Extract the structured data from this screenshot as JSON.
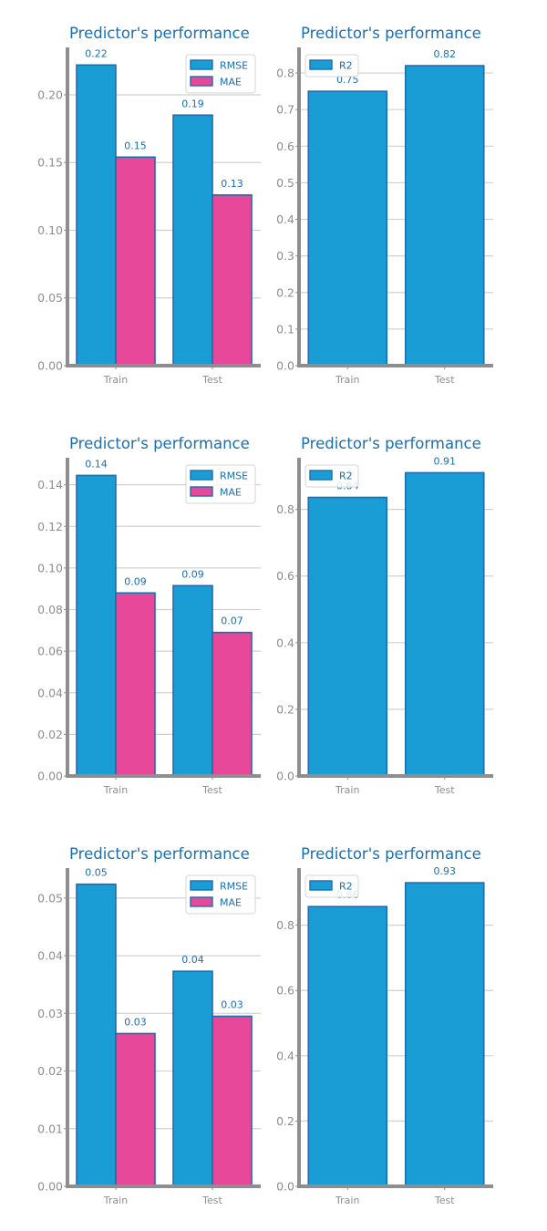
{
  "colors": {
    "rmse": "#199dd4",
    "mae": "#e8489a",
    "r2": "#199dd4",
    "edge": "#1a6fb0",
    "text": "#1a6fb0",
    "axis": "#8e8e8e",
    "grid": "#d0d0d0"
  },
  "chart_data": [
    {
      "type": "bar",
      "title": "Predictor's performance",
      "categories": [
        "Train",
        "Test"
      ],
      "series": [
        {
          "name": "RMSE",
          "values": [
            0.222,
            0.185
          ],
          "labels": [
            "0.22",
            "0.19"
          ]
        },
        {
          "name": "MAE",
          "values": [
            0.154,
            0.126
          ],
          "labels": [
            "0.15",
            "0.13"
          ]
        }
      ],
      "ylim": [
        0,
        0.235
      ],
      "yticks": [
        "0.00",
        "0.05",
        "0.10",
        "0.15",
        "0.20"
      ],
      "yticks_values": [
        0,
        0.05,
        0.1,
        0.15,
        0.2
      ],
      "grid": true,
      "legend": "top-right"
    },
    {
      "type": "bar",
      "title": "Predictor's performance",
      "categories": [
        "Train",
        "Test"
      ],
      "series": [
        {
          "name": "R2",
          "values": [
            0.75,
            0.82
          ],
          "labels": [
            "0.75",
            "0.82"
          ]
        }
      ],
      "ylim": [
        0,
        0.87
      ],
      "yticks": [
        "0.0",
        "0.1",
        "0.2",
        "0.3",
        "0.4",
        "0.5",
        "0.6",
        "0.7",
        "0.8"
      ],
      "yticks_values": [
        0,
        0.1,
        0.2,
        0.3,
        0.4,
        0.5,
        0.6,
        0.7,
        0.8
      ],
      "grid": true,
      "legend": "top-left"
    },
    {
      "type": "bar",
      "title": "Predictor's performance",
      "categories": [
        "Train",
        "Test"
      ],
      "series": [
        {
          "name": "RMSE",
          "values": [
            0.1445,
            0.0915
          ],
          "labels": [
            "0.14",
            "0.09"
          ]
        },
        {
          "name": "MAE",
          "values": [
            0.088,
            0.069
          ],
          "labels": [
            "0.09",
            "0.07"
          ]
        }
      ],
      "ylim": [
        0,
        0.153
      ],
      "yticks": [
        "0.00",
        "0.02",
        "0.04",
        "0.06",
        "0.08",
        "0.10",
        "0.12",
        "0.14"
      ],
      "yticks_values": [
        0,
        0.02,
        0.04,
        0.06,
        0.08,
        0.1,
        0.12,
        0.14
      ],
      "grid": true,
      "legend": "top-right"
    },
    {
      "type": "bar",
      "title": "Predictor's performance",
      "categories": [
        "Train",
        "Test"
      ],
      "series": [
        {
          "name": "R2",
          "values": [
            0.836,
            0.91
          ],
          "labels": [
            "0.84",
            "0.91"
          ]
        }
      ],
      "ylim": [
        0,
        0.955
      ],
      "yticks": [
        "0.0",
        "0.2",
        "0.4",
        "0.6",
        "0.8"
      ],
      "yticks_values": [
        0,
        0.2,
        0.4,
        0.6,
        0.8
      ],
      "grid": true,
      "legend": "top-left"
    },
    {
      "type": "bar",
      "title": "Predictor's performance",
      "categories": [
        "Train",
        "Test"
      ],
      "series": [
        {
          "name": "RMSE",
          "values": [
            0.0524,
            0.0373
          ],
          "labels": [
            "0.05",
            "0.04"
          ]
        },
        {
          "name": "MAE",
          "values": [
            0.0265,
            0.0295
          ],
          "labels": [
            "0.03",
            "0.03"
          ]
        }
      ],
      "ylim": [
        0,
        0.0552
      ],
      "yticks": [
        "0.00",
        "0.01",
        "0.02",
        "0.03",
        "0.04",
        "0.05"
      ],
      "yticks_values": [
        0,
        0.01,
        0.02,
        0.03,
        0.04,
        0.05
      ],
      "grid": true,
      "legend": "top-right"
    },
    {
      "type": "bar",
      "title": "Predictor's performance",
      "categories": [
        "Train",
        "Test"
      ],
      "series": [
        {
          "name": "R2",
          "values": [
            0.857,
            0.93
          ],
          "labels": [
            "0.86",
            "0.93"
          ]
        }
      ],
      "ylim": [
        0,
        0.975
      ],
      "yticks": [
        "0.0",
        "0.2",
        "0.4",
        "0.6",
        "0.8"
      ],
      "yticks_values": [
        0,
        0.2,
        0.4,
        0.6,
        0.8
      ],
      "grid": true,
      "legend": "top-left"
    }
  ]
}
